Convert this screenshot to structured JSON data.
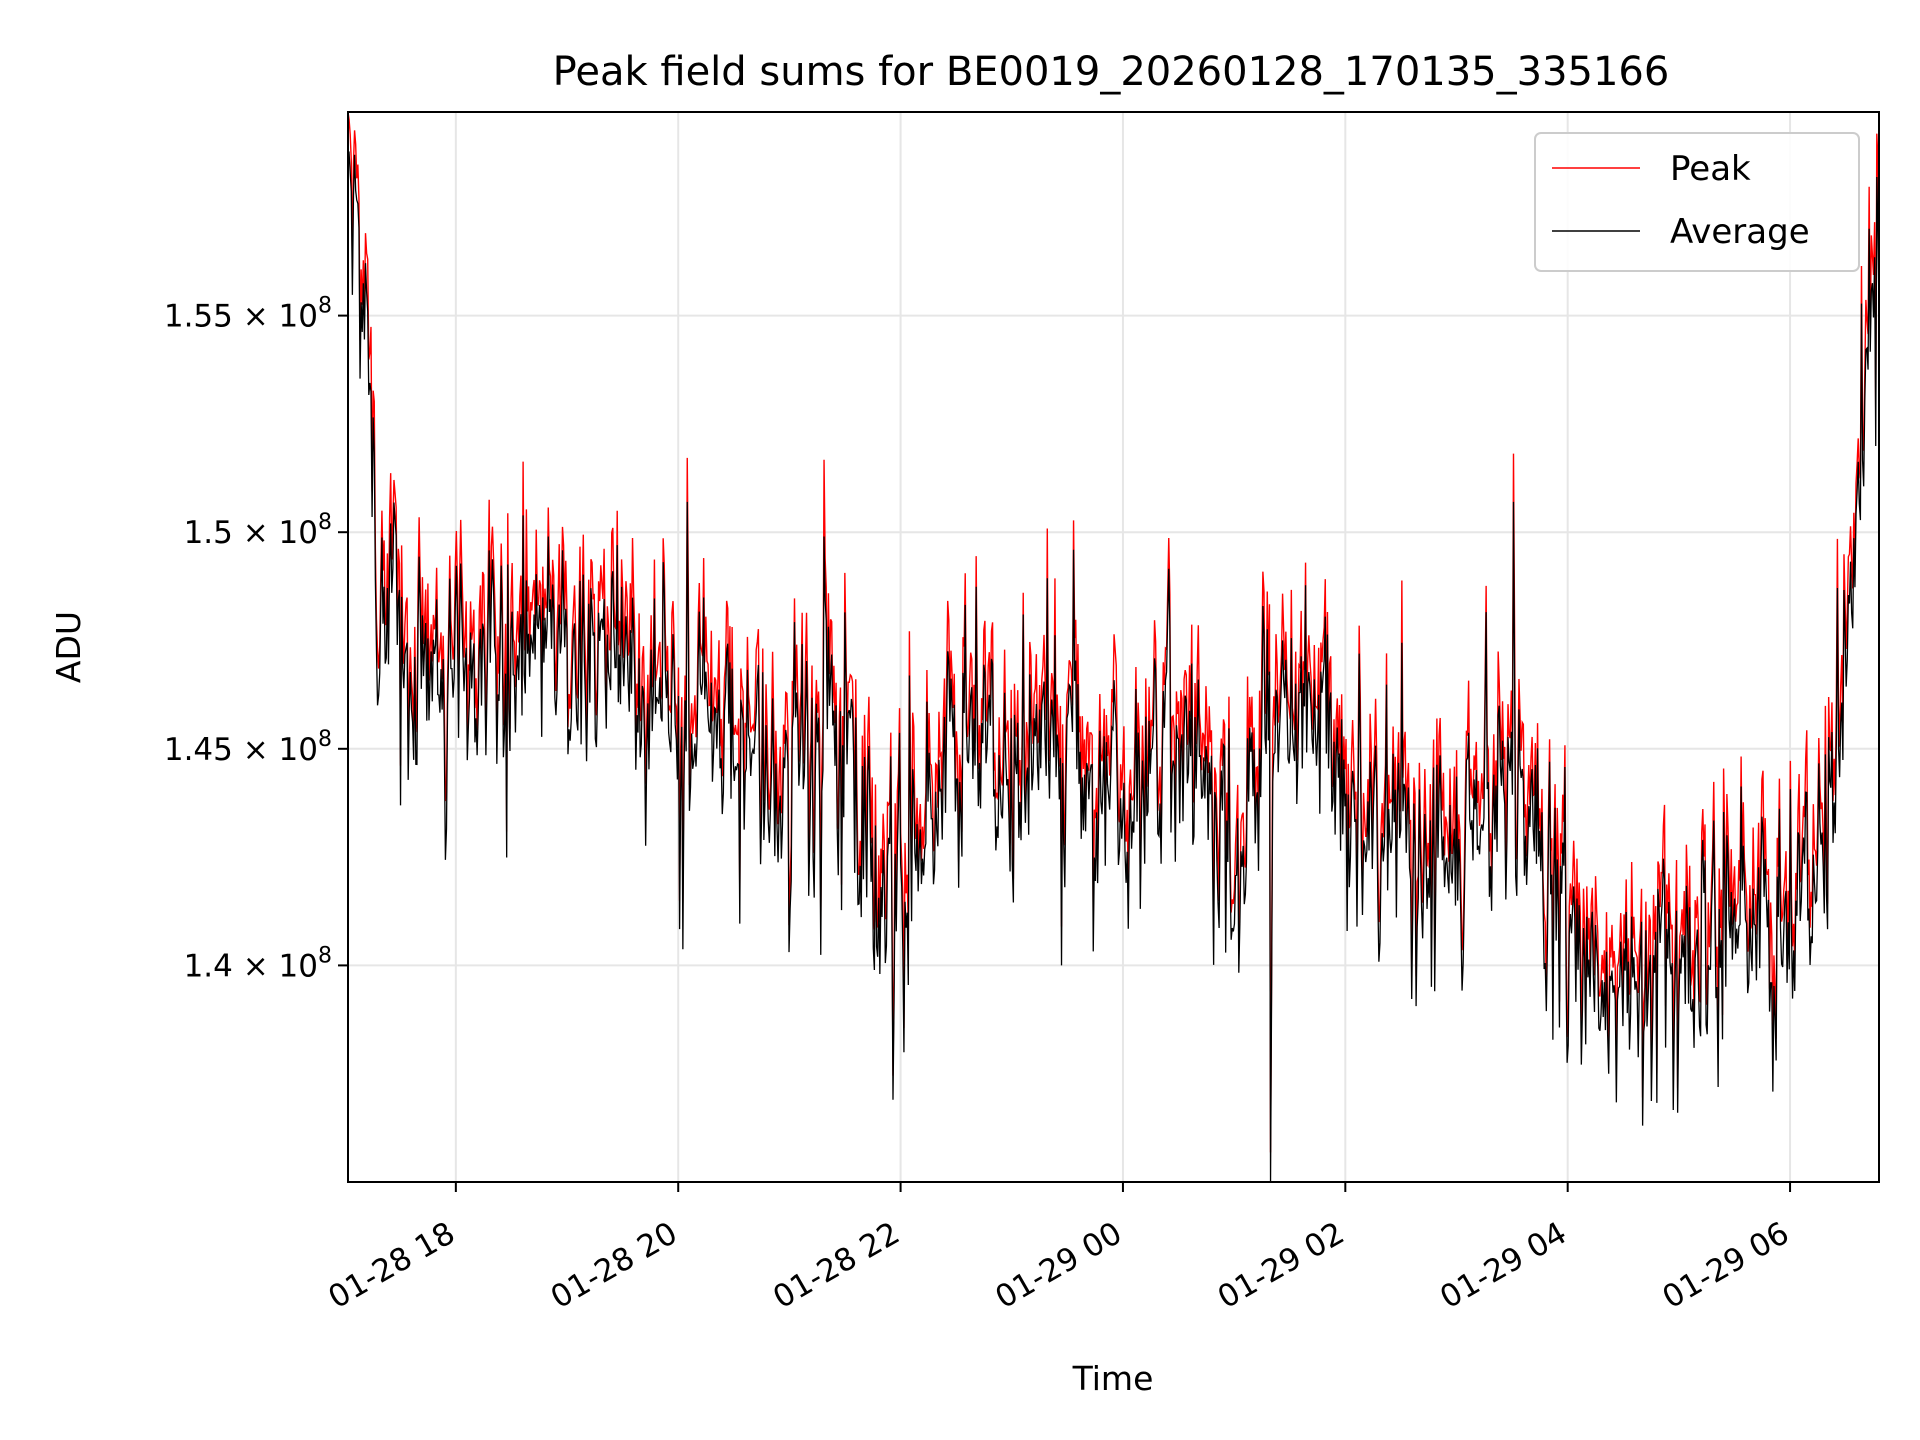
{
  "chart_data": {
    "type": "line",
    "title": "Peak field sums for BE0019_20260128_170135_335166",
    "xlabel": "Time",
    "ylabel": "ADU",
    "x_range_hours_since_01_28_00": [
      17.03,
      30.8
    ],
    "ylim": [
      135000000.0,
      159700000.0
    ],
    "grid": true,
    "legend_position": "top-right",
    "x_ticks": [
      {
        "value": 18,
        "label": "01-28 18"
      },
      {
        "value": 20,
        "label": "01-28 20"
      },
      {
        "value": 22,
        "label": "01-28 22"
      },
      {
        "value": 24,
        "label": "01-29 00"
      },
      {
        "value": 26,
        "label": "01-29 02"
      },
      {
        "value": 28,
        "label": "01-29 04"
      },
      {
        "value": 30,
        "label": "01-29 06"
      }
    ],
    "y_ticks": [
      {
        "value": 140000000.0,
        "mantissa": "1.4",
        "exponent": "8"
      },
      {
        "value": 145000000.0,
        "mantissa": "1.45",
        "exponent": "8"
      },
      {
        "value": 150000000.0,
        "mantissa": "1.5",
        "exponent": "8"
      },
      {
        "value": 155000000.0,
        "mantissa": "1.55",
        "exponent": "8"
      }
    ],
    "series": [
      {
        "name": "Peak",
        "color": "#ff0000"
      },
      {
        "name": "Average",
        "color": "#000000"
      }
    ],
    "average_profile": {
      "x": [
        17.03,
        17.1,
        17.2,
        17.3,
        17.5,
        17.8,
        18.0,
        18.3,
        18.6,
        18.8,
        19.0,
        19.2,
        19.5,
        19.8,
        20.1,
        20.4,
        20.6,
        20.8,
        21.0,
        21.3,
        21.6,
        21.9,
        22.2,
        22.5,
        22.8,
        23.0,
        23.3,
        23.6,
        23.9,
        24.2,
        24.5,
        24.8,
        25.0,
        25.2,
        25.4,
        25.6,
        25.8,
        26.0,
        26.2,
        26.5,
        26.8,
        27.0,
        27.3,
        27.6,
        27.9,
        28.2,
        28.5,
        28.8,
        29.1,
        29.4,
        29.7,
        30.0,
        30.2,
        30.4,
        30.6,
        30.8
      ],
      "y": [
        158500000.0,
        157000000.0,
        154000000.0,
        149000000.0,
        147500000.0,
        146800000.0,
        146200000.0,
        146800000.0,
        147200000.0,
        147000000.0,
        146600000.0,
        147200000.0,
        146800000.0,
        146400000.0,
        146000000.0,
        145500000.0,
        145000000.0,
        144500000.0,
        144000000.0,
        145500000.0,
        145000000.0,
        142000000.0,
        142500000.0,
        145500000.0,
        145000000.0,
        144800000.0,
        145500000.0,
        145000000.0,
        144000000.0,
        144800000.0,
        145500000.0,
        144000000.0,
        142000000.0,
        144500000.0,
        146200000.0,
        145800000.0,
        145500000.0,
        143500000.0,
        143500000.0,
        143000000.0,
        142000000.0,
        143000000.0,
        143500000.0,
        144000000.0,
        141000000.0,
        140500000.0,
        139500000.0,
        140500000.0,
        141000000.0,
        140800000.0,
        141000000.0,
        140500000.0,
        142500000.0,
        145000000.0,
        150000000.0,
        158500000.0
      ]
    },
    "notable_points": [
      {
        "name": "Peak",
        "x": 17.03,
        "y": 159700000.0
      },
      {
        "name": "Peak",
        "x": 20.08,
        "y": 151700000.0
      },
      {
        "name": "Peak",
        "x": 21.31,
        "y": 150900000.0
      },
      {
        "name": "Peak",
        "x": 21.93,
        "y": 136900000.0
      },
      {
        "name": "Peak",
        "x": 25.33,
        "y": 135000000.0
      },
      {
        "name": "Peak",
        "x": 27.51,
        "y": 151700000.0
      },
      {
        "name": "Peak",
        "x": 28.67,
        "y": 136300000.0
      },
      {
        "name": "Peak",
        "x": 30.78,
        "y": 159200000.0
      }
    ]
  }
}
